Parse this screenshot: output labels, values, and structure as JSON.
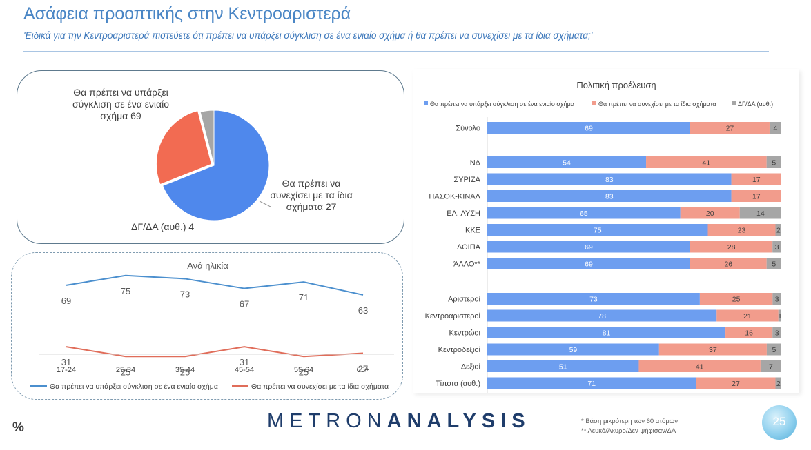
{
  "header": {
    "title": "Ασάφεια προοπτικής στην Κεντροαριστερά",
    "subtitle": "'Ειδικά για την Κεντροαριστερά πιστεύετε ότι πρέπει να υπάρξει σύγκλιση σε ένα ενιαίο σχήμα ή θα πρέπει να συνεχίσει με τα ίδια σχήματα;'"
  },
  "colors": {
    "blue": "#6d9ef0",
    "salmon": "#f29c8c",
    "gray": "#a6a6a6",
    "pie_blue": "#4f88ec",
    "pie_orange": "#f26b52",
    "line_blue": "#4b8fce",
    "line_orange": "#e06d5a"
  },
  "chart_data": [
    {
      "type": "pie",
      "labels": [
        "Θα πρέπει να υπάρξει σύγκλιση σε ένα ενιαίο σχήμα",
        "Θα πρέπει να συνεχίσει με τα ίδια σχήματα",
        "ΔΓ/ΔΑ (αυθ.)"
      ],
      "values": [
        69,
        27,
        4
      ],
      "label_texts": [
        "Θα πρέπει να υπάρξει σύγκλιση σε ένα ενιαίο σχήμα 69",
        "Θα πρέπει να συνεχίσει με τα ίδια σχήματα 27",
        "ΔΓ/ΔΑ (αυθ.) 4"
      ]
    },
    {
      "type": "line",
      "title": "Ανά ηλικία",
      "x": [
        "17-24",
        "25-34",
        "35-44",
        "45-54",
        "55-64",
        "65+"
      ],
      "series": [
        {
          "name": "Θα πρέπει να υπάρξει σύγκλιση σε ένα ενιαίο σχήμα",
          "values": [
            69,
            75,
            73,
            67,
            71,
            63
          ]
        },
        {
          "name": "Θα πρέπει να συνεχίσει με τα ίδια σχήματα",
          "values": [
            31,
            25,
            25,
            31,
            25,
            27
          ]
        }
      ],
      "legend": "bottom"
    },
    {
      "type": "bar",
      "orientation": "horizontal-stacked",
      "title": "Πολιτική προέλευση",
      "legend": "top",
      "series_names": [
        "Θα πρέπει να υπάρξει σύγκλιση σε ένα ενιαίο σχήμα",
        "Θα πρέπει να συνεχίσει με τα ίδια σχήματα",
        "ΔΓ/ΔΑ (αυθ.)"
      ],
      "groups": [
        [
          {
            "label": "Σύνολο",
            "values": [
              69,
              27,
              4
            ]
          }
        ],
        [
          {
            "label": "ΝΔ",
            "values": [
              54,
              41,
              5
            ]
          },
          {
            "label": "ΣΥΡΙΖΑ",
            "values": [
              83,
              17,
              0
            ]
          },
          {
            "label": "ΠΑΣΟΚ-ΚΙΝΑΛ",
            "values": [
              83,
              17,
              0
            ]
          },
          {
            "label": "ΕΛ. ΛΥΣΗ",
            "values": [
              65,
              20,
              14
            ]
          },
          {
            "label": "ΚΚΕ",
            "values": [
              75,
              23,
              2
            ]
          },
          {
            "label": "ΛΟΙΠΑ",
            "values": [
              69,
              28,
              3
            ]
          },
          {
            "label": "ΆΛΛΟ**",
            "values": [
              69,
              26,
              5
            ]
          }
        ],
        [
          {
            "label": "Αριστεροί",
            "values": [
              73,
              25,
              3
            ]
          },
          {
            "label": "Κεντροαριστεροί",
            "values": [
              78,
              21,
              1
            ]
          },
          {
            "label": "Κεντρώοι",
            "values": [
              81,
              16,
              3
            ]
          },
          {
            "label": "Κεντροδεξιοί",
            "values": [
              59,
              37,
              5
            ]
          },
          {
            "label": "Δεξιοί",
            "values": [
              51,
              41,
              7
            ]
          },
          {
            "label": "Τίποτα (αυθ.)",
            "values": [
              71,
              27,
              2
            ]
          }
        ]
      ]
    }
  ],
  "pie_labels": {
    "main": "Θα πρέπει να υπάρξει σύγκλιση σε ένα ενιαίο σχήμα 69",
    "cont": "Θα πρέπει να συνεχίσει με τα ίδια σχήματα 27",
    "dk": "ΔΓ/ΔΑ (αυθ.) 4"
  },
  "footer": {
    "logo_a": "METRON",
    "logo_b": "ANALYSIS",
    "percent_sign": "%",
    "note1": "* Βάση μικρότερη των 60 ατόμων",
    "note2": "** Λευκό/Άκυρο/Δεν ψήφισαν/ΔΑ",
    "page": "25"
  }
}
